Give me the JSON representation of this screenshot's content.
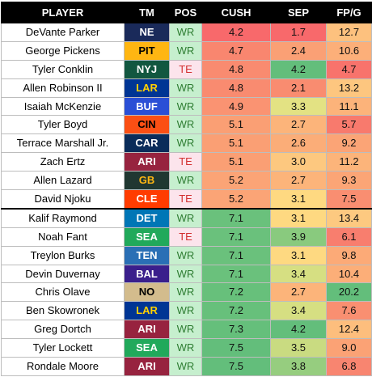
{
  "headers": {
    "player": "PLAYER",
    "team": "TM",
    "pos": "POS",
    "cush": "CUSH",
    "sep": "SEP",
    "fpg": "FP/G"
  },
  "rows": [
    {
      "player": "DeVante Parker",
      "team": "NE",
      "team_bg": "#1a2a5a",
      "team_fg": "#ffffff",
      "pos": "WR",
      "cush": "4.2",
      "cush_bg": "#f8696b",
      "sep": "1.7",
      "sep_bg": "#f8696b",
      "fpg": "12.7",
      "fpg_bg": "#fdc17e"
    },
    {
      "player": "George Pickens",
      "team": "PIT",
      "team_bg": "#ffb612",
      "team_fg": "#000000",
      "pos": "WR",
      "cush": "4.7",
      "cush_bg": "#f9866f",
      "sep": "2.4",
      "sep_bg": "#faa075",
      "fpg": "10.6",
      "fpg_bg": "#fcaf79"
    },
    {
      "player": "Tyler Conklin",
      "team": "NYJ",
      "team_bg": "#125740",
      "team_fg": "#ffffff",
      "pos": "TE",
      "cush": "4.8",
      "cush_bg": "#f98b70",
      "sep": "4.2",
      "sep_bg": "#63be7b",
      "fpg": "4.7",
      "fpg_bg": "#f8736c"
    },
    {
      "player": "Allen Robinson II",
      "team": "LAR",
      "team_bg": "#003594",
      "team_fg": "#ffd100",
      "pos": "WR",
      "cush": "4.8",
      "cush_bg": "#f98b70",
      "sep": "2.1",
      "sep_bg": "#f98c70",
      "fpg": "13.2",
      "fpg_bg": "#fdc67f"
    },
    {
      "player": "Isaiah McKenzie",
      "team": "BUF",
      "team_bg": "#2a4fd6",
      "team_fg": "#ffffff",
      "pos": "WR",
      "cush": "4.9",
      "cush_bg": "#fa9372",
      "sep": "3.3",
      "sep_bg": "#e3e283",
      "fpg": "11.1",
      "fpg_bg": "#fcb37a"
    },
    {
      "player": "Tyler Boyd",
      "team": "CIN",
      "team_bg": "#fb4f14",
      "team_fg": "#000000",
      "pos": "WR",
      "cush": "5.1",
      "cush_bg": "#fa9f74",
      "sep": "2.7",
      "sep_bg": "#fcb47a",
      "fpg": "5.7",
      "fpg_bg": "#f87a6d"
    },
    {
      "player": "Terrace Marshall Jr.",
      "team": "CAR",
      "team_bg": "#0a2c5a",
      "team_fg": "#ffffff",
      "pos": "WR",
      "cush": "5.1",
      "cush_bg": "#fa9f74",
      "sep": "2.6",
      "sep_bg": "#fbad78",
      "fpg": "9.2",
      "fpg_bg": "#fba476"
    },
    {
      "player": "Zach Ertz",
      "team": "ARI",
      "team_bg": "#97233f",
      "team_fg": "#ffffff",
      "pos": "TE",
      "cush": "5.1",
      "cush_bg": "#fa9f74",
      "sep": "3.0",
      "sep_bg": "#fdc87f",
      "fpg": "11.2",
      "fpg_bg": "#fcb47a"
    },
    {
      "player": "Allen Lazard",
      "team": "GB",
      "team_bg": "#203731",
      "team_fg": "#ffb612",
      "pos": "WR",
      "cush": "5.2",
      "cush_bg": "#fba476",
      "sep": "2.7",
      "sep_bg": "#fcb47a",
      "fpg": "9.3",
      "fpg_bg": "#fba576"
    },
    {
      "player": "David Njoku",
      "team": "CLE",
      "team_bg": "#ff3c00",
      "team_fg": "#ffffff",
      "pos": "TE",
      "cush": "5.2",
      "cush_bg": "#fba476",
      "sep": "3.1",
      "sep_bg": "#fed981",
      "fpg": "7.5",
      "fpg_bg": "#f98e71"
    },
    {
      "player": "Kalif Raymond",
      "team": "DET",
      "team_bg": "#0076b6",
      "team_fg": "#ffffff",
      "pos": "WR",
      "cush": "7.1",
      "cush_bg": "#6ac17c",
      "sep": "3.1",
      "sep_bg": "#fed981",
      "fpg": "13.4",
      "fpg_bg": "#fdc980"
    },
    {
      "player": "Noah Fant",
      "team": "SEA",
      "team_bg": "#21a95b",
      "team_fg": "#ffffff",
      "pos": "TE",
      "cush": "7.1",
      "cush_bg": "#6ac17c",
      "sep": "3.9",
      "sep_bg": "#89ca7e",
      "fpg": "6.1",
      "fpg_bg": "#f87e6e"
    },
    {
      "player": "Treylon Burks",
      "team": "TEN",
      "team_bg": "#2a6fb5",
      "team_fg": "#ffffff",
      "pos": "WR",
      "cush": "7.1",
      "cush_bg": "#6ac17c",
      "sep": "3.1",
      "sep_bg": "#fed981",
      "fpg": "9.8",
      "fpg_bg": "#fcaa77"
    },
    {
      "player": "Devin Duvernay",
      "team": "BAL",
      "team_bg": "#3a1f8c",
      "team_fg": "#ffffff",
      "pos": "WR",
      "cush": "7.1",
      "cush_bg": "#6ac17c",
      "sep": "3.4",
      "sep_bg": "#d6df82",
      "fpg": "10.4",
      "fpg_bg": "#fcae78"
    },
    {
      "player": "Chris Olave",
      "team": "NO",
      "team_bg": "#d3bc8d",
      "team_fg": "#000000",
      "pos": "WR",
      "cush": "7.2",
      "cush_bg": "#67c07b",
      "sep": "2.7",
      "sep_bg": "#fcb47a",
      "fpg": "20.2",
      "fpg_bg": "#63be7b"
    },
    {
      "player": "Ben Skowronek",
      "team": "LAR",
      "team_bg": "#003594",
      "team_fg": "#ffd100",
      "pos": "WR",
      "cush": "7.2",
      "cush_bg": "#67c07b",
      "sep": "3.4",
      "sep_bg": "#d6df82",
      "fpg": "7.6",
      "fpg_bg": "#f98f71"
    },
    {
      "player": "Greg Dortch",
      "team": "ARI",
      "team_bg": "#97233f",
      "team_fg": "#ffffff",
      "pos": "WR",
      "cush": "7.3",
      "cush_bg": "#65bf7b",
      "sep": "4.2",
      "sep_bg": "#63be7b",
      "fpg": "12.4",
      "fpg_bg": "#fdbe7d"
    },
    {
      "player": "Tyler Lockett",
      "team": "SEA",
      "team_bg": "#21a95b",
      "team_fg": "#ffffff",
      "pos": "WR",
      "cush": "7.5",
      "cush_bg": "#63be7b",
      "sep": "3.5",
      "sep_bg": "#c9db81",
      "fpg": "9.0",
      "fpg_bg": "#fba275"
    },
    {
      "player": "Rondale Moore",
      "team": "ARI",
      "team_bg": "#97233f",
      "team_fg": "#ffffff",
      "pos": "WR",
      "cush": "7.5",
      "cush_bg": "#63be7b",
      "sep": "3.8",
      "sep_bg": "#96cd7f",
      "fpg": "6.8",
      "fpg_bg": "#f88570"
    }
  ]
}
